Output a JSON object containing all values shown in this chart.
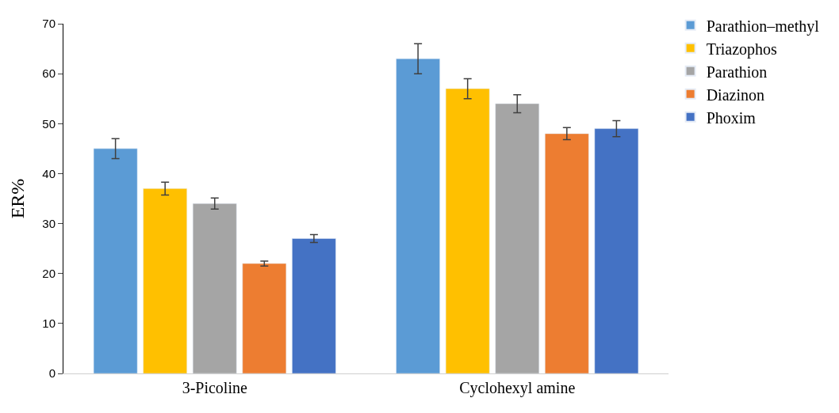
{
  "chart_data": {
    "type": "bar",
    "ylabel": "ER%",
    "categories": [
      "3-Picoline",
      "Cyclohexyl amine"
    ],
    "series": [
      {
        "name": "Parathion–methyl",
        "color": "#5b9bd5",
        "values": [
          45,
          63
        ],
        "errors": [
          2,
          3
        ]
      },
      {
        "name": "Triazophos",
        "color": "#ffc000",
        "values": [
          37,
          57
        ],
        "errors": [
          1.3,
          2
        ]
      },
      {
        "name": "Parathion",
        "color": "#a5a5a5",
        "values": [
          34,
          54
        ],
        "errors": [
          1.1,
          1.8
        ]
      },
      {
        "name": "Diazinon",
        "color": "#ed7d31",
        "values": [
          22,
          48
        ],
        "errors": [
          0.5,
          1.2
        ]
      },
      {
        "name": "Phoxim",
        "color": "#4472c4",
        "values": [
          27,
          49
        ],
        "errors": [
          0.8,
          1.6
        ]
      }
    ],
    "ylim": [
      0,
      70
    ],
    "yticks": [
      0,
      10,
      20,
      30,
      40,
      50,
      60,
      70
    ],
    "legend": "top right"
  }
}
